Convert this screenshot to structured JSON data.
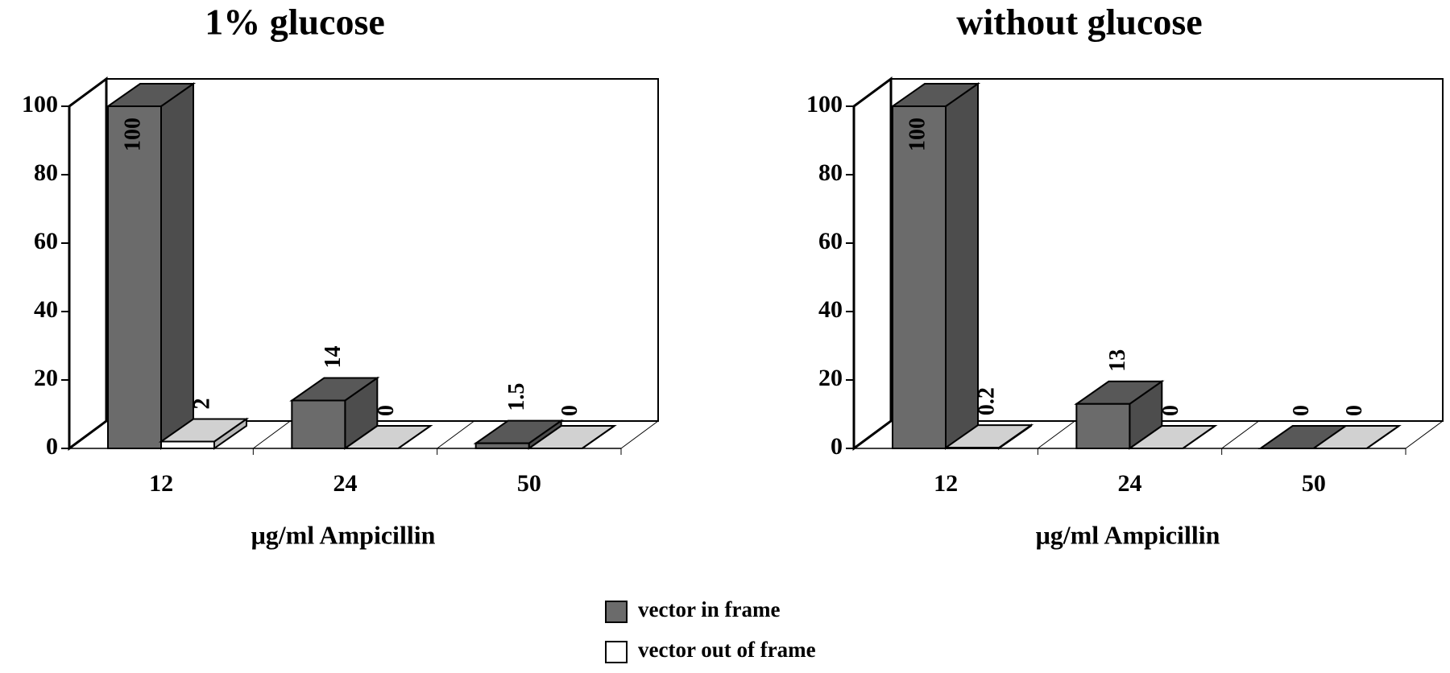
{
  "chart_data": [
    {
      "type": "bar",
      "title": "1% glucose",
      "x_label": "μg/ml Ampicillin",
      "categories": [
        "12",
        "24",
        "50"
      ],
      "series": [
        {
          "name": "vector in frame",
          "color": "#6b6b6b",
          "values": [
            100,
            14,
            1.5
          ]
        },
        {
          "name": "vector out of frame",
          "color": "#ffffff",
          "values": [
            2,
            0,
            0
          ]
        }
      ],
      "ylim": [
        0,
        100
      ],
      "yticks": [
        0,
        20,
        40,
        60,
        80,
        100
      ]
    },
    {
      "type": "bar",
      "title": "without glucose",
      "x_label": "μg/ml Ampicillin",
      "categories": [
        "12",
        "24",
        "50"
      ],
      "series": [
        {
          "color": "#6b6b6b",
          "values": [
            100,
            13,
            0
          ]
        },
        {
          "color": "#ffffff",
          "values": [
            0.2,
            0,
            0
          ]
        }
      ],
      "ylim": [
        0,
        100
      ],
      "yticks": [
        0,
        20,
        40,
        60,
        80,
        100
      ]
    }
  ]
}
